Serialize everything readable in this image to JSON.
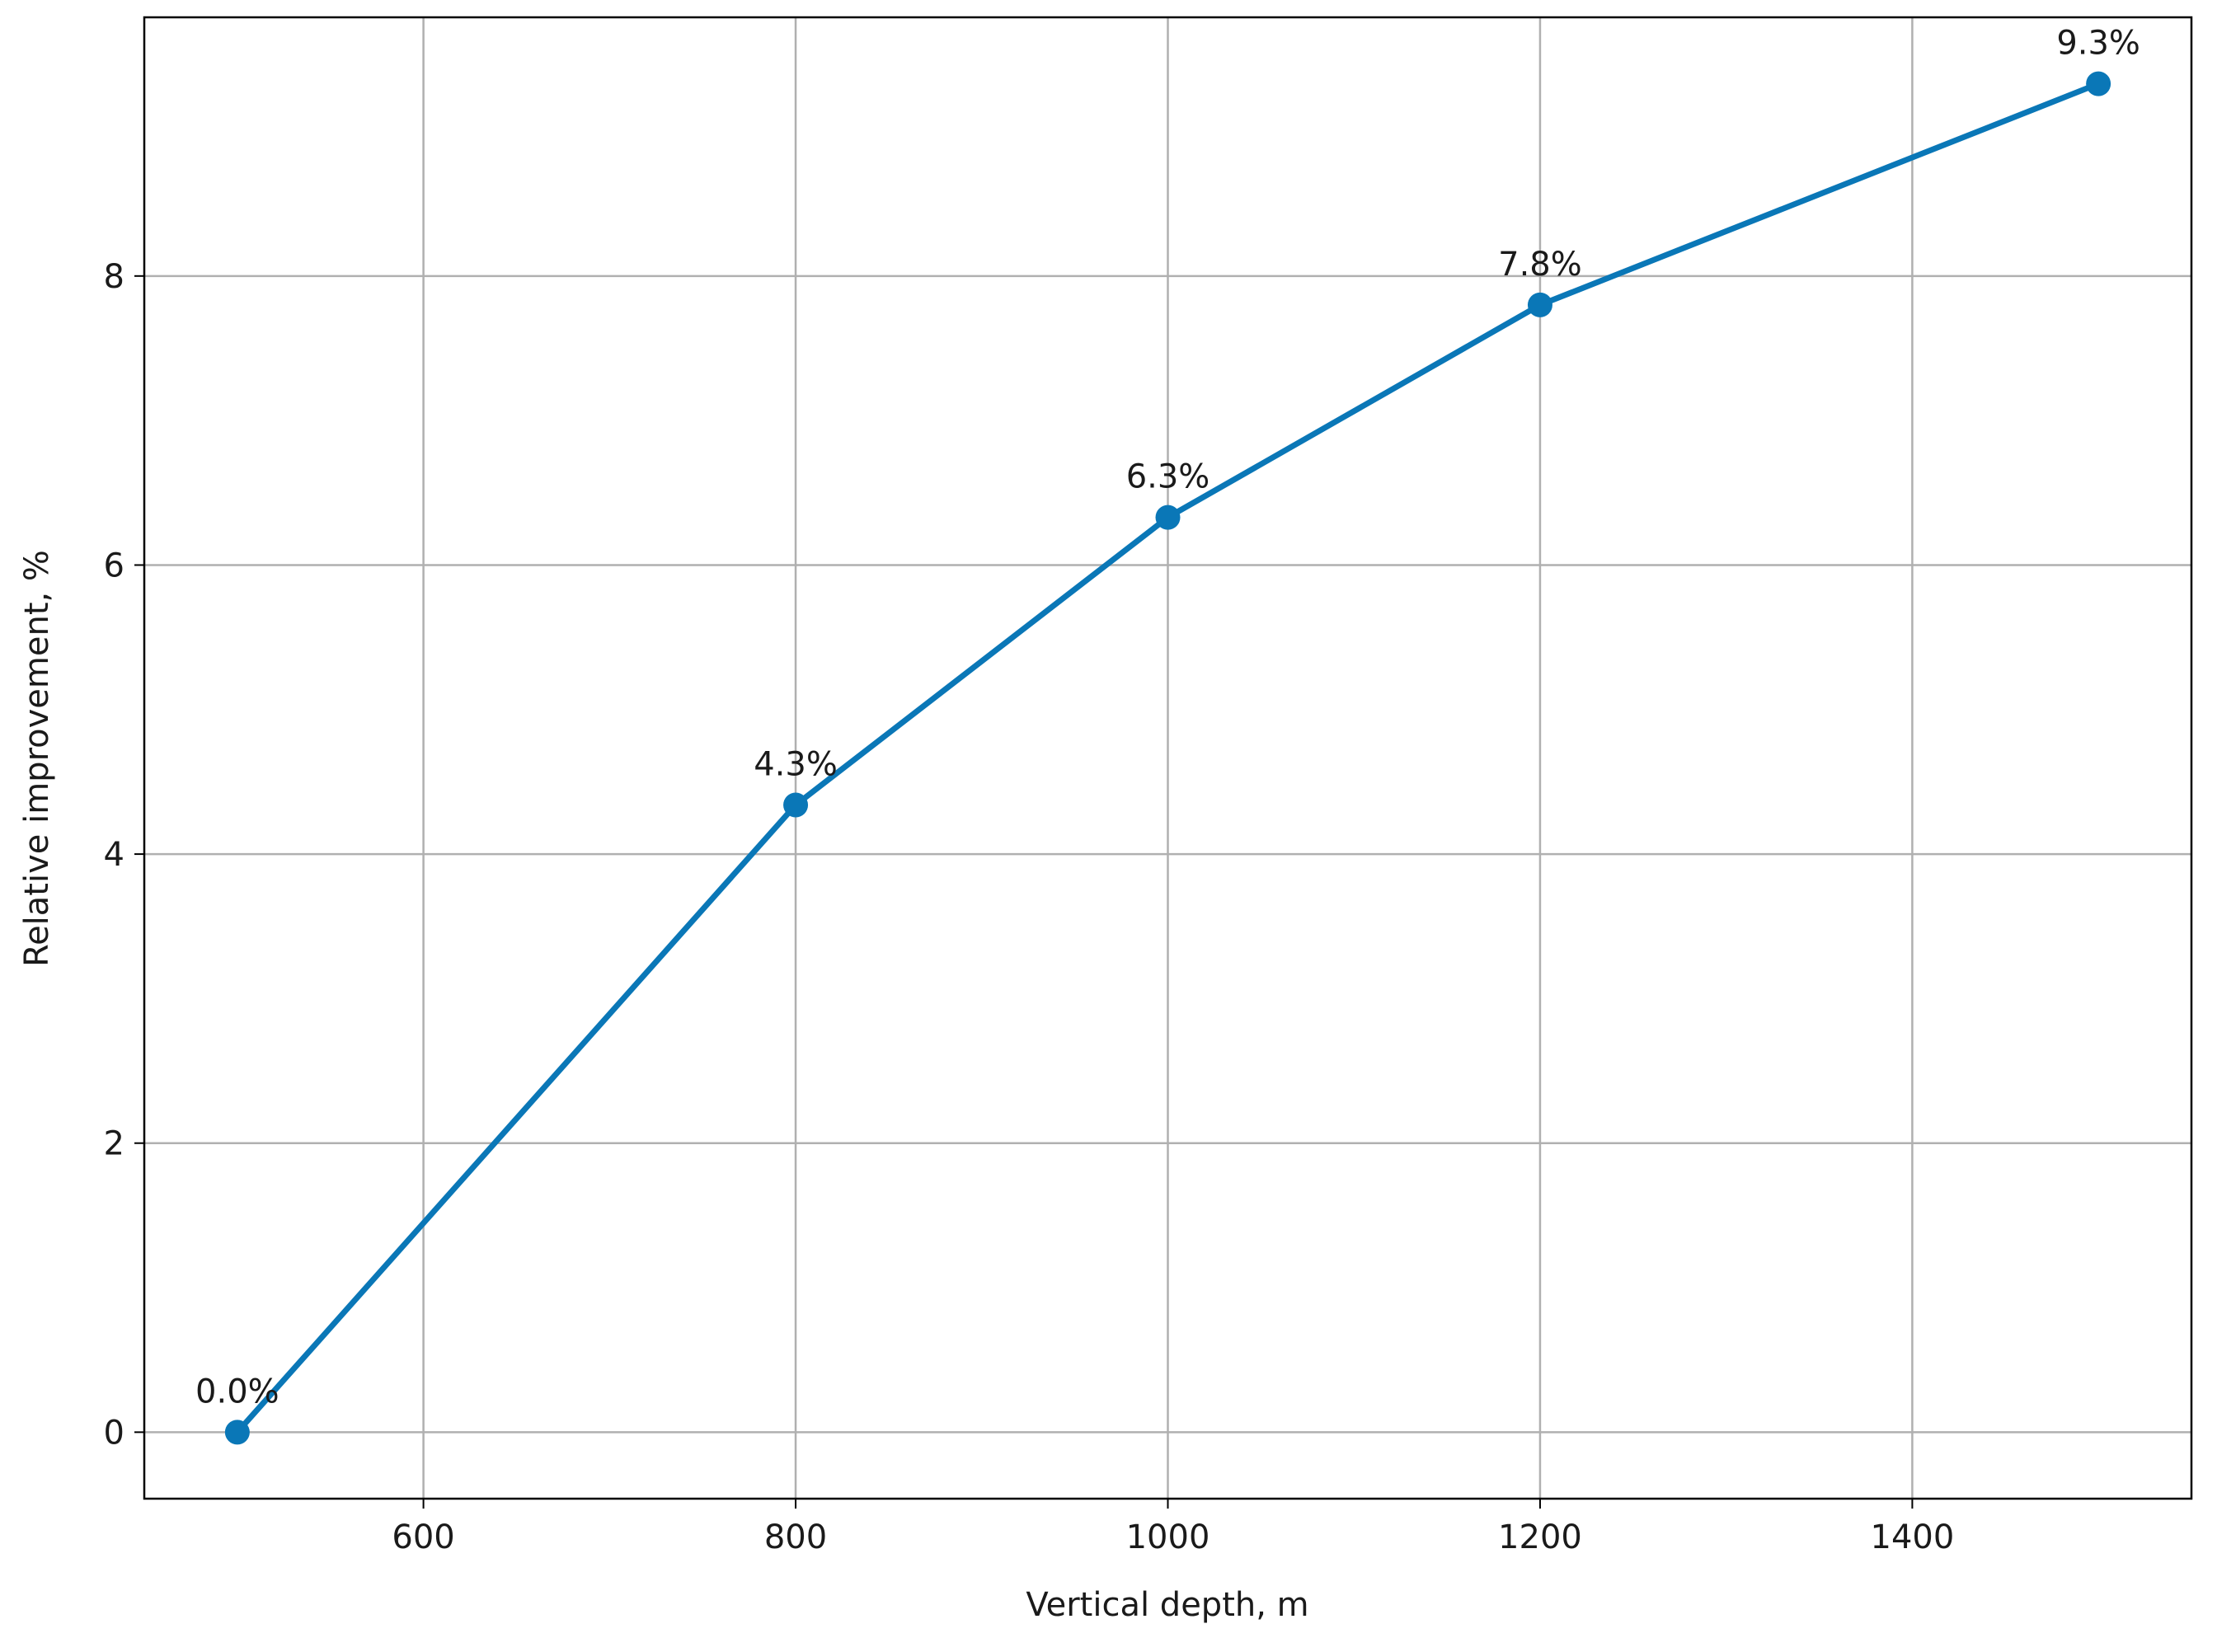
{
  "chart_data": {
    "type": "line",
    "x_label": "Vertical depth, m",
    "y_label": "Relative improvement, %",
    "x": [
      500,
      800,
      1000,
      1200,
      1500
    ],
    "series": [
      {
        "color": "#0a77b7",
        "values": [
          0,
          4.34,
          6.33,
          7.8,
          9.33
        ],
        "value_labels": [
          "0.0%",
          "4.3%",
          "6.3%",
          "7.8%",
          "9.3%"
        ]
      }
    ],
    "xlim": [
      450,
      1550
    ],
    "ylim": [
      -0.46,
      9.79
    ],
    "xticks": [
      600,
      800,
      1000,
      1200,
      1400
    ],
    "yticks": [
      0,
      2,
      4,
      6,
      8
    ],
    "grid": true,
    "markers": true
  }
}
